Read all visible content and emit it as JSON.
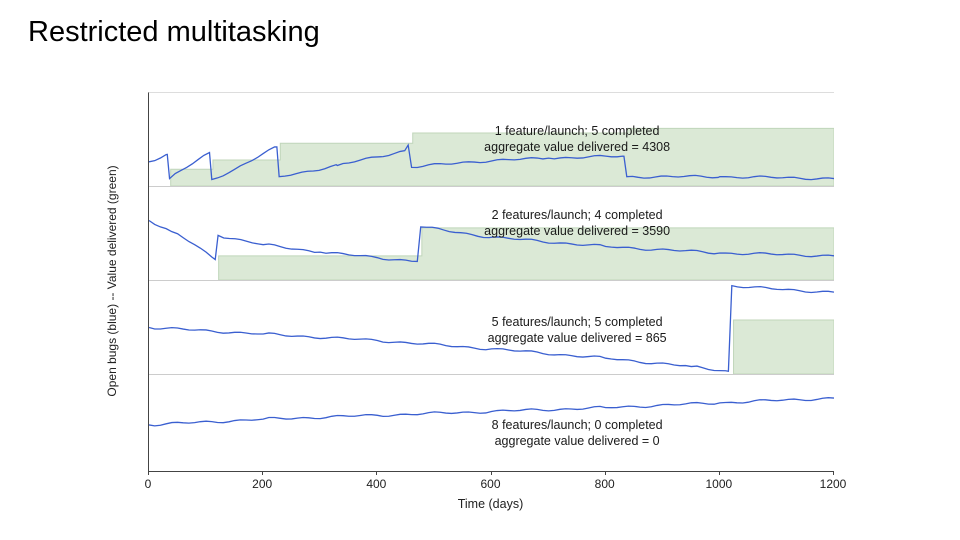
{
  "slide": {
    "title": "Restricted multitasking"
  },
  "chart_data": {
    "type": "line",
    "title": "Restricted multitasking",
    "xlabel": "Time (days)",
    "ylabel": "Open bugs (blue) -- Value delivered (green)",
    "x_range": [
      0,
      1200
    ],
    "x_ticks": [
      0,
      200,
      400,
      600,
      800,
      1000,
      1200
    ],
    "grid": false,
    "legend": "none",
    "colors": {
      "bugs_line": "#3a5fd0",
      "value_fill": "#dbe9d6",
      "value_edge": "#c0d6ba",
      "axis": "#444444"
    },
    "panels": [
      {
        "annotation_line1": "1 feature/launch; 5 completed",
        "annotation_line2": "aggregate value delivered = 4308",
        "features_per_launch": 1,
        "launches_completed": 5,
        "aggregate_value_delivered": 4308,
        "value_steps": [
          {
            "day": 38,
            "level": 0.18
          },
          {
            "day": 112,
            "level": 0.28
          },
          {
            "day": 230,
            "level": 0.46
          },
          {
            "day": 462,
            "level": 0.57
          },
          {
            "day": 838,
            "level": 0.62
          }
        ],
        "bugs_line": [
          [
            0,
            0.26
          ],
          [
            32,
            0.34
          ],
          [
            36,
            0.08
          ],
          [
            106,
            0.36
          ],
          [
            110,
            0.07
          ],
          [
            150,
            0.18
          ],
          [
            224,
            0.42
          ],
          [
            228,
            0.1
          ],
          [
            330,
            0.22
          ],
          [
            448,
            0.38
          ],
          [
            454,
            0.44
          ],
          [
            460,
            0.2
          ],
          [
            560,
            0.26
          ],
          [
            700,
            0.3
          ],
          [
            832,
            0.32
          ],
          [
            837,
            0.1
          ],
          [
            1000,
            0.1
          ],
          [
            1200,
            0.08
          ]
        ]
      },
      {
        "annotation_line1": "2 features/launch; 4 completed",
        "annotation_line2": "aggregate value delivered = 3590",
        "features_per_launch": 2,
        "launches_completed": 4,
        "aggregate_value_delivered": 3590,
        "value_steps": [
          {
            "day": 122,
            "level": 0.26
          },
          {
            "day": 478,
            "level": 0.56
          }
        ],
        "bugs_line": [
          [
            0,
            0.64
          ],
          [
            40,
            0.52
          ],
          [
            80,
            0.38
          ],
          [
            116,
            0.22
          ],
          [
            121,
            0.48
          ],
          [
            200,
            0.38
          ],
          [
            300,
            0.3
          ],
          [
            400,
            0.24
          ],
          [
            470,
            0.2
          ],
          [
            476,
            0.57
          ],
          [
            600,
            0.46
          ],
          [
            800,
            0.36
          ],
          [
            1000,
            0.29
          ],
          [
            1200,
            0.26
          ]
        ]
      },
      {
        "annotation_line1": "5 features/launch; 5 completed",
        "annotation_line2": "aggregate value delivered = 865",
        "features_per_launch": 5,
        "launches_completed": 5,
        "aggregate_value_delivered": 865,
        "value_steps": [
          {
            "day": 1024,
            "level": 0.58
          }
        ],
        "bugs_line": [
          [
            0,
            0.5
          ],
          [
            200,
            0.43
          ],
          [
            400,
            0.36
          ],
          [
            600,
            0.27
          ],
          [
            800,
            0.17
          ],
          [
            950,
            0.08
          ],
          [
            1015,
            0.03
          ],
          [
            1021,
            0.95
          ],
          [
            1100,
            0.91
          ],
          [
            1200,
            0.88
          ]
        ]
      },
      {
        "annotation_line1": "8 features/launch; 0 completed",
        "annotation_line2": "aggregate value delivered = 0",
        "features_per_launch": 8,
        "launches_completed": 0,
        "aggregate_value_delivered": 0,
        "value_steps": [],
        "bugs_line": [
          [
            0,
            0.48
          ],
          [
            200,
            0.54
          ],
          [
            400,
            0.58
          ],
          [
            600,
            0.62
          ],
          [
            800,
            0.66
          ],
          [
            1000,
            0.71
          ],
          [
            1200,
            0.76
          ]
        ]
      }
    ]
  }
}
